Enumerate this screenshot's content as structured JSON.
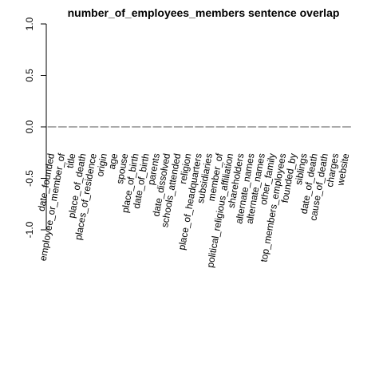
{
  "chart_data": {
    "type": "bar",
    "title": "number_of_employees_members sentence overlap",
    "xlabel": "",
    "ylabel": "",
    "ylim": [
      -1.0,
      1.0
    ],
    "yticks": [
      "-1.0",
      "-0.5",
      "0.0",
      "0.5",
      "1.0"
    ],
    "categories": [
      "date_founded",
      "employee_or_member_of",
      "title",
      "place_of_death",
      "places_of_residence",
      "origin",
      "age",
      "spouse",
      "place_of_birth",
      "date_of_birth",
      "parents",
      "date_dissolved",
      "schools_attended",
      "religion",
      "place_of_headquarters",
      "subsidiaries",
      "member_of",
      "political_religious_affiliation",
      "shareholders",
      "alternate_names",
      "alternate_names",
      "other_family",
      "top_members_employees",
      "founded_by",
      "siblings",
      "date_of_death",
      "cause_of_death",
      "charges",
      "website"
    ],
    "values": [
      0,
      0,
      0,
      0,
      0,
      0,
      0,
      0,
      0,
      0,
      0,
      0,
      0,
      0,
      0,
      0,
      0,
      0,
      0,
      0,
      0,
      0,
      0,
      0,
      0,
      0,
      0,
      0,
      0
    ],
    "grid": false,
    "colors": {
      "bar_border": "#555555",
      "axis": "#000000",
      "text": "#000000"
    }
  }
}
